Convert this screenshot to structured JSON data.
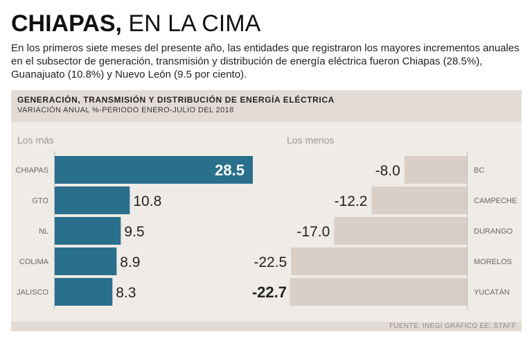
{
  "header": {
    "title_bold": "CHIAPAS,",
    "title_light": "EN LA CIMA",
    "intro": "En los primeros siete meses del presente año, las entidades que registraron los mayores incrementos anuales en el subsector de generación, transmisión y distribución de energía eléctrica fueron Chiapas (28.5%), Guanajuato (10.8%) y Nuevo León (9.5 por ciento)."
  },
  "panel": {
    "title": "GENERACIÓN, TRANSMISIÓN Y DISTRIBUCIÓN DE ENERGÍA ELÉCTRICA",
    "subtitle": "VARIACIÓN ANUAL %-PERIODO ENERO-JULIO DEL 2018"
  },
  "footer": {
    "source": "FUENTE: INEGI GRÁFICO EE: STAFF"
  },
  "colors": {
    "top_bar": "#2a6f8c",
    "bottom_bar": "#d9cfc7",
    "panel_bg": "#efebe7",
    "head_bg": "#e3dcd6"
  },
  "chart_data": [
    {
      "type": "bar",
      "orientation": "horizontal",
      "section_label": "Los más",
      "categories": [
        "CHIAPAS",
        "GTO",
        "NL",
        "COLIMA",
        "JALISCO"
      ],
      "values": [
        28.5,
        10.8,
        9.5,
        8.9,
        8.3
      ],
      "value_labels": [
        "28.5",
        "10.8",
        "9.5",
        "8.9",
        "8.3"
      ],
      "xlim": [
        0,
        28.5
      ]
    },
    {
      "type": "bar",
      "orientation": "horizontal",
      "section_label": "Los menos",
      "categories": [
        "BC",
        "CAMPECHE",
        "DURANGO",
        "MORELOS",
        "YUCATÁN"
      ],
      "values": [
        -8.0,
        -12.2,
        -17.0,
        -22.5,
        -22.7
      ],
      "value_labels": [
        "-8.0",
        "-12.2",
        "-17.0",
        "-22.5",
        "-22.7"
      ],
      "xlim": [
        -22.7,
        0
      ]
    }
  ]
}
